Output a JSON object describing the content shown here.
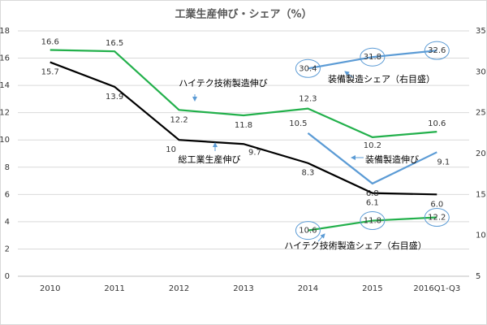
{
  "chart_data": {
    "type": "line",
    "title": "工業生産伸び・シェア（%）",
    "categories": [
      "2010",
      "2011",
      "2012",
      "2013",
      "2014",
      "2015",
      "2016Q1-Q3"
    ],
    "ylim": [
      0,
      18
    ],
    "yticks": [
      0,
      2,
      4,
      6,
      8,
      10,
      12,
      14,
      16,
      18
    ],
    "y2lim": [
      5,
      35
    ],
    "y2ticks": [
      5,
      10,
      15,
      20,
      25,
      30,
      35
    ],
    "grid": true,
    "series": [
      {
        "name": "総工業生産伸び",
        "color": "#000000",
        "values": [
          15.7,
          13.9,
          10,
          9.7,
          8.3,
          6.1,
          6.0
        ],
        "value_labels": [
          "15.7",
          "13.9",
          "10",
          "9.7",
          "8.3",
          "6.1",
          "6.0"
        ]
      },
      {
        "name": "ハイテク技術製造伸び",
        "color": "#22b04b",
        "values": [
          16.6,
          16.5,
          12.2,
          11.8,
          12.3,
          10.2,
          10.6
        ]
      },
      {
        "name": "装備製造伸び",
        "color": "#5b9bd5",
        "values": [
          null,
          null,
          null,
          null,
          10.5,
          6.8,
          9.1
        ]
      },
      {
        "name": "装備製造シェア（右目盛）",
        "color": "#5b9bd5",
        "axis": "y2",
        "values": [
          null,
          null,
          null,
          null,
          30.4,
          31.8,
          32.6
        ]
      },
      {
        "name": "ハイテク技術製造シェア（右目盛）",
        "color": "#22b04b",
        "axis": "y2",
        "values": [
          null,
          null,
          null,
          null,
          10.6,
          11.8,
          12.2
        ]
      }
    ]
  }
}
